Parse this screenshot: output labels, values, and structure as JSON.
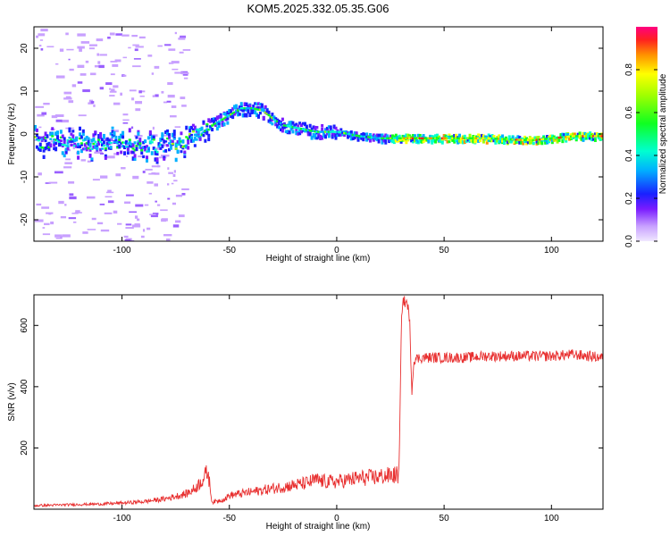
{
  "title": "KOM5.2025.332.05.35.G06",
  "chart_data": [
    {
      "type": "heatmap",
      "xlabel": "Height of straight line (km)",
      "ylabel": "Frequency (Hz)",
      "xlim": [
        -141,
        124
      ],
      "ylim": [
        -25,
        25
      ],
      "xticks": [
        -100,
        -50,
        0,
        50,
        100
      ],
      "yticks": [
        -20,
        -10,
        0,
        10,
        20
      ],
      "colorbar": {
        "label": "Normalized spectral amplitude",
        "range": [
          0,
          1
        ],
        "ticks": [
          0.0,
          0.2,
          0.4,
          0.6,
          0.8
        ],
        "tick_labels": [
          "0.0",
          "0.2",
          "0.4",
          "0.6",
          "0.8"
        ]
      },
      "ridge": {
        "x": [
          -100,
          -90,
          -80,
          -70,
          -62,
          -55,
          -50,
          -45,
          -40,
          -35,
          -30,
          -25,
          -20,
          -10,
          0,
          10,
          20,
          30,
          50,
          70,
          90,
          100,
          110,
          124
        ],
        "freq_hz": [
          -2,
          -3,
          -2.5,
          -1.5,
          1,
          3,
          4.5,
          6,
          6,
          5.5,
          3.5,
          2,
          1.5,
          0.5,
          0.5,
          -0.5,
          -1,
          -1,
          -1,
          -1,
          -1.5,
          -1,
          -0.5,
          -0.5
        ]
      }
    },
    {
      "type": "line",
      "xlabel": "Height of straight line (km)",
      "ylabel": "SNR (v/v)",
      "xlim": [
        -141,
        124
      ],
      "ylim": [
        0,
        700
      ],
      "xticks": [
        -100,
        -50,
        0,
        50,
        100
      ],
      "yticks": [
        200,
        400,
        600
      ],
      "series": [
        {
          "color": "#e83030",
          "x": [
            -141,
            -130,
            -120,
            -110,
            -100,
            -90,
            -80,
            -70,
            -66,
            -62,
            -60,
            -58,
            -52,
            -50,
            -45,
            -40,
            -35,
            -30,
            -25,
            -20,
            -15,
            -12,
            -10,
            -5,
            0,
            5,
            10,
            15,
            20,
            25,
            28,
            29,
            30,
            31,
            33,
            34,
            35,
            36,
            40,
            50,
            60,
            70,
            80,
            90,
            100,
            110,
            124
          ],
          "values": [
            10,
            12,
            14,
            15,
            18,
            22,
            30,
            45,
            60,
            90,
            110,
            20,
            30,
            40,
            45,
            50,
            55,
            60,
            65,
            70,
            75,
            80,
            85,
            80,
            80,
            85,
            90,
            92,
            95,
            98,
            100,
            100,
            640,
            680,
            670,
            600,
            390,
            490,
            495,
            495,
            495,
            500,
            500,
            500,
            500,
            505,
            495
          ]
        }
      ]
    }
  ]
}
